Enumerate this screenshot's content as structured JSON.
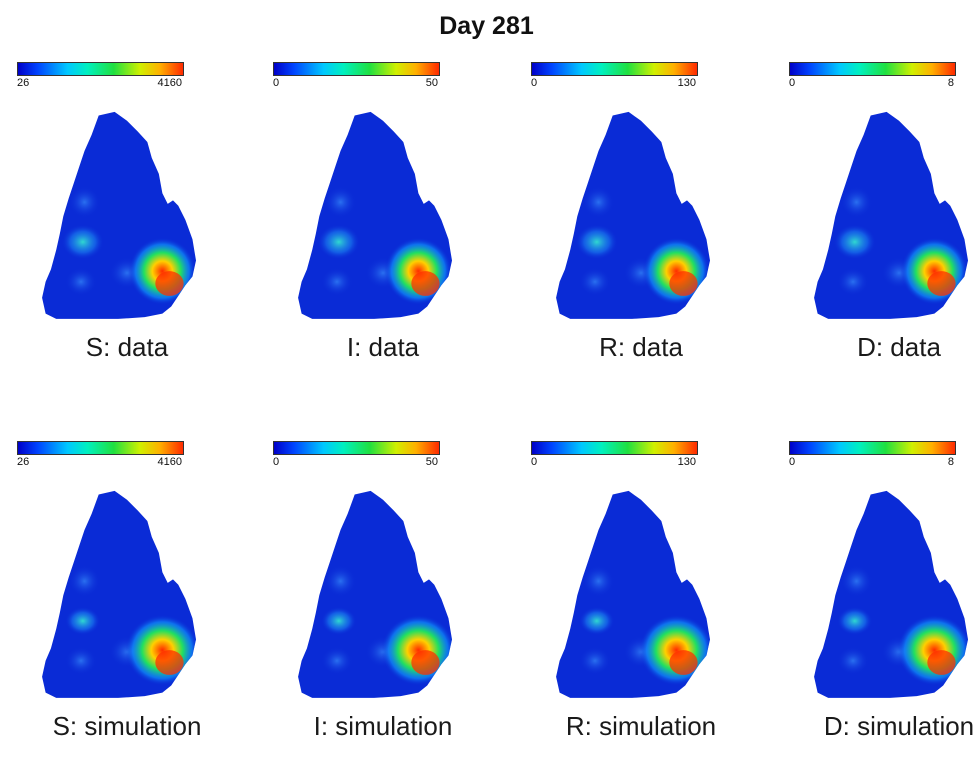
{
  "title": "Day 281",
  "panels": [
    {
      "label": "S: data",
      "cbar_min": "26",
      "cbar_max": "4160",
      "variant": "data"
    },
    {
      "label": "I: data",
      "cbar_min": "0",
      "cbar_max": "50",
      "variant": "data"
    },
    {
      "label": "R: data",
      "cbar_min": "0",
      "cbar_max": "130",
      "variant": "data"
    },
    {
      "label": "D: data",
      "cbar_min": "0",
      "cbar_max": "8",
      "variant": "data"
    },
    {
      "label": "S: simulation",
      "cbar_min": "26",
      "cbar_max": "4160",
      "variant": "simulation"
    },
    {
      "label": "I: simulation",
      "cbar_min": "0",
      "cbar_max": "50",
      "variant": "simulation"
    },
    {
      "label": "R: simulation",
      "cbar_min": "0",
      "cbar_max": "130",
      "variant": "simulation"
    },
    {
      "label": "D: simulation",
      "cbar_min": "0",
      "cbar_max": "8",
      "variant": "simulation"
    }
  ],
  "colors": {
    "low": "#0a2bd6",
    "mid": "#20e8c8",
    "high": "#ff2a00"
  }
}
